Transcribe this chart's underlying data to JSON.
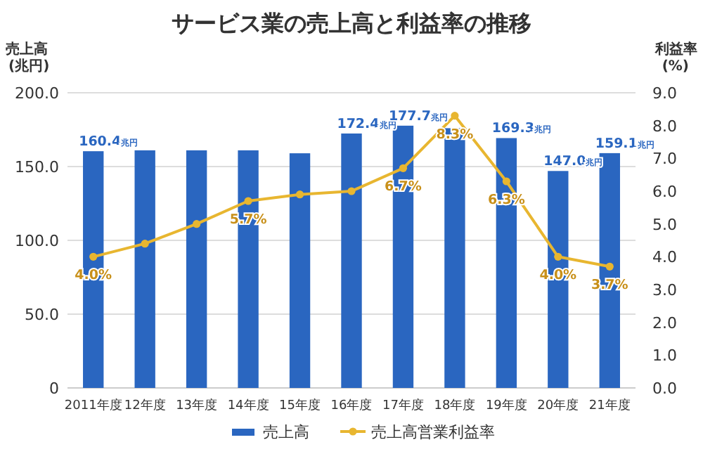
{
  "chart_data": {
    "type": "bar",
    "title": "サービス業の売上高と利益率の推移",
    "ylabel": "売上高(兆円)",
    "y2label": "利益率(%)",
    "categories": [
      "2011年度",
      "12年度",
      "13年度",
      "14年度",
      "15年度",
      "16年度",
      "17年度",
      "18年度",
      "19年度",
      "20年度",
      "21年度"
    ],
    "series": [
      {
        "name": "売上高",
        "color": "#2a66c0",
        "values": [
          160.4,
          161,
          161,
          161,
          159,
          172.4,
          177.7,
          176,
          169.3,
          147.0,
          159.1
        ],
        "value_labels": [
          "160.4兆円",
          null,
          null,
          null,
          null,
          "172.4兆円",
          "177.7兆円",
          null,
          "169.3兆円",
          "147.0兆円",
          "159.1兆円"
        ]
      },
      {
        "name": "売上高営業利益率",
        "type": "line",
        "axis": "y2",
        "color": "#e8b630",
        "values": [
          4.0,
          4.4,
          5.0,
          5.7,
          5.9,
          6.0,
          6.7,
          8.3,
          6.3,
          4.0,
          3.7
        ],
        "value_labels": [
          "4.0%",
          null,
          null,
          "5.7%",
          null,
          null,
          "6.7%",
          "8.3%",
          "6.3%",
          "4.0%",
          "3.7%"
        ]
      }
    ],
    "ylim": [
      0,
      200
    ],
    "yticks": [
      0,
      {
        "value": 50,
        "label": "50.0"
      },
      {
        "value": 100,
        "label": "100.0"
      },
      {
        "value": 150,
        "label": "150.0"
      },
      {
        "value": 200,
        "label": "200.0"
      }
    ],
    "y2lim": [
      0,
      9
    ],
    "y2ticks": [
      {
        "value": 0,
        "label": "0.0"
      },
      {
        "value": 1,
        "label": "1.0"
      },
      {
        "value": 2,
        "label": "2.0"
      },
      {
        "value": 3,
        "label": "3.0"
      },
      {
        "value": 4,
        "label": "4.0"
      },
      {
        "value": 5,
        "label": "5.0"
      },
      {
        "value": 6,
        "label": "6.0"
      },
      {
        "value": 7,
        "label": "7.0"
      },
      {
        "value": 8,
        "label": "8.0"
      },
      {
        "value": 9,
        "label": "9.0"
      }
    ],
    "grid": "y",
    "legend": "bottom",
    "marker": "circle"
  }
}
